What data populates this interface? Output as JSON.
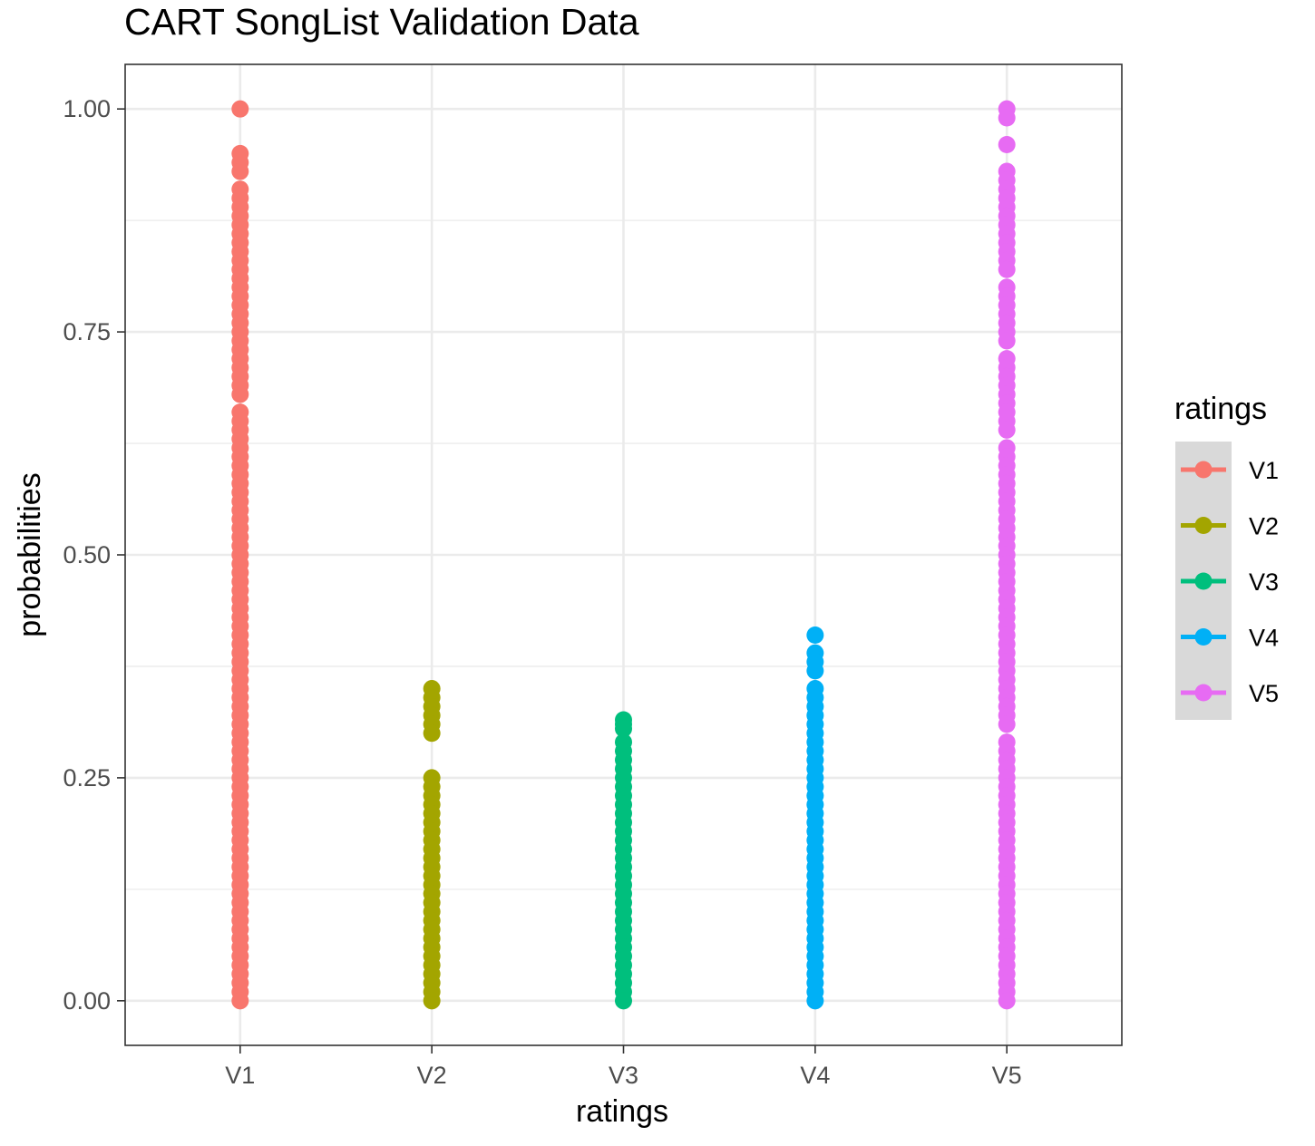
{
  "chart_data": {
    "type": "scatter",
    "title": "CART SongList Validation Data",
    "xlabel": "ratings",
    "ylabel": "probabilities",
    "categories": [
      "V1",
      "V2",
      "V3",
      "V4",
      "V5"
    ],
    "ylim": [
      -0.05,
      1.05
    ],
    "y_ticks": [
      "0.00",
      "0.25",
      "0.50",
      "0.75",
      "1.00"
    ],
    "grid": true,
    "legend": {
      "title": "ratings",
      "position": "right"
    },
    "series": [
      {
        "name": "V1",
        "color": "#F8766D",
        "values": [
          1.0,
          0.95,
          0.94,
          0.93,
          0.91,
          0.9,
          0.89,
          0.88,
          0.87,
          0.86,
          0.85,
          0.84,
          0.83,
          0.82,
          0.81,
          0.8,
          0.79,
          0.78,
          0.77,
          0.76,
          0.75,
          0.74,
          0.73,
          0.72,
          0.71,
          0.7,
          0.69,
          0.68,
          0.66,
          0.65,
          0.64,
          0.63,
          0.62,
          0.61,
          0.6,
          0.59,
          0.58,
          0.57,
          0.56,
          0.55,
          0.54,
          0.53,
          0.52,
          0.51,
          0.5,
          0.49,
          0.48,
          0.47,
          0.46,
          0.45,
          0.44,
          0.43,
          0.42,
          0.41,
          0.4,
          0.39,
          0.38,
          0.37,
          0.36,
          0.35,
          0.34,
          0.33,
          0.32,
          0.31,
          0.3,
          0.29,
          0.28,
          0.27,
          0.26,
          0.25,
          0.24,
          0.23,
          0.22,
          0.21,
          0.2,
          0.19,
          0.18,
          0.17,
          0.16,
          0.15,
          0.14,
          0.13,
          0.12,
          0.11,
          0.1,
          0.09,
          0.08,
          0.07,
          0.06,
          0.05,
          0.04,
          0.03,
          0.02,
          0.01,
          0.0
        ]
      },
      {
        "name": "V2",
        "color": "#A3A500",
        "values": [
          0.35,
          0.34,
          0.33,
          0.32,
          0.31,
          0.3,
          0.25,
          0.24,
          0.23,
          0.22,
          0.21,
          0.2,
          0.19,
          0.18,
          0.17,
          0.16,
          0.15,
          0.14,
          0.13,
          0.12,
          0.11,
          0.1,
          0.09,
          0.08,
          0.07,
          0.06,
          0.05,
          0.04,
          0.03,
          0.02,
          0.01,
          0.0
        ]
      },
      {
        "name": "V3",
        "color": "#00BF7D",
        "values": [
          0.315,
          0.31,
          0.305,
          0.29,
          0.28,
          0.27,
          0.26,
          0.25,
          0.24,
          0.23,
          0.22,
          0.21,
          0.2,
          0.19,
          0.18,
          0.17,
          0.16,
          0.15,
          0.14,
          0.13,
          0.12,
          0.11,
          0.1,
          0.09,
          0.08,
          0.07,
          0.06,
          0.05,
          0.04,
          0.03,
          0.02,
          0.01,
          0.0
        ]
      },
      {
        "name": "V4",
        "color": "#00B0F6",
        "values": [
          0.41,
          0.39,
          0.38,
          0.37,
          0.35,
          0.34,
          0.33,
          0.32,
          0.31,
          0.3,
          0.29,
          0.28,
          0.27,
          0.26,
          0.25,
          0.24,
          0.23,
          0.22,
          0.21,
          0.2,
          0.19,
          0.18,
          0.17,
          0.16,
          0.15,
          0.14,
          0.13,
          0.12,
          0.11,
          0.1,
          0.09,
          0.08,
          0.07,
          0.06,
          0.05,
          0.04,
          0.03,
          0.02,
          0.01,
          0.0
        ]
      },
      {
        "name": "V5",
        "color": "#E76BF3",
        "values": [
          1.0,
          0.99,
          0.96,
          0.93,
          0.92,
          0.91,
          0.9,
          0.89,
          0.88,
          0.87,
          0.86,
          0.85,
          0.84,
          0.83,
          0.82,
          0.8,
          0.79,
          0.78,
          0.77,
          0.76,
          0.75,
          0.74,
          0.72,
          0.71,
          0.7,
          0.69,
          0.68,
          0.67,
          0.66,
          0.65,
          0.64,
          0.62,
          0.61,
          0.6,
          0.59,
          0.58,
          0.57,
          0.56,
          0.55,
          0.54,
          0.53,
          0.52,
          0.51,
          0.5,
          0.49,
          0.48,
          0.47,
          0.46,
          0.45,
          0.44,
          0.43,
          0.42,
          0.41,
          0.4,
          0.39,
          0.38,
          0.37,
          0.36,
          0.35,
          0.34,
          0.33,
          0.32,
          0.31,
          0.29,
          0.28,
          0.27,
          0.26,
          0.25,
          0.24,
          0.23,
          0.22,
          0.21,
          0.2,
          0.19,
          0.18,
          0.17,
          0.16,
          0.15,
          0.14,
          0.13,
          0.12,
          0.11,
          0.1,
          0.09,
          0.08,
          0.07,
          0.06,
          0.05,
          0.04,
          0.03,
          0.02,
          0.01,
          0.0
        ]
      }
    ]
  }
}
